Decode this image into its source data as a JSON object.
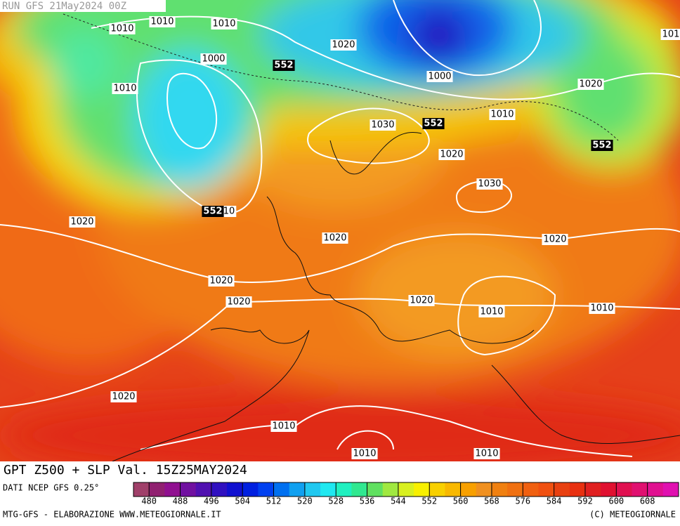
{
  "run_label": "RUN GFS 21May2024 00Z",
  "title": "GPT Z500 + SLP Val. 15Z25MAY2024",
  "source": "DATI NCEP GFS 0.25°",
  "credit_left": "MTG-GFS - ELABORAZIONE WWW.METEOGIORNALE.IT",
  "credit_right": "(C) METEOGIORNALE",
  "isobar_labels": [
    "1010",
    "1010",
    "1010",
    "1020",
    "1000",
    "1010",
    "1000",
    "1020",
    "1010",
    "1030",
    "1020",
    "1030",
    "1020",
    "1020",
    "1020",
    "1020",
    "1020",
    "1020",
    "1010",
    "1010",
    "1020",
    "1010",
    "1010",
    "1010",
    "101",
    "10"
  ],
  "z500_labels": [
    "552",
    "552",
    "552",
    "552"
  ],
  "colorbar": {
    "lim": [
      476,
      616
    ],
    "ticks": [
      480,
      488,
      496,
      504,
      512,
      520,
      528,
      536,
      544,
      552,
      560,
      568,
      576,
      584,
      592,
      600,
      608
    ],
    "colors": [
      "#a0406a",
      "#902070",
      "#901090",
      "#7010a0",
      "#5010b0",
      "#3010c0",
      "#1010d0",
      "#0020e0",
      "#0040f0",
      "#0070f0",
      "#10a0f0",
      "#20c8f0",
      "#20e8f0",
      "#20f0c0",
      "#30e890",
      "#60e060",
      "#a0e840",
      "#d8f020",
      "#f8f000",
      "#f8d000",
      "#f8b800",
      "#f8a000",
      "#f09020",
      "#f08010",
      "#f07010",
      "#f06010",
      "#f05010",
      "#e84010",
      "#e83010",
      "#e02020",
      "#e01030",
      "#e01050",
      "#e01070",
      "#e01090",
      "#e010b0"
    ]
  }
}
